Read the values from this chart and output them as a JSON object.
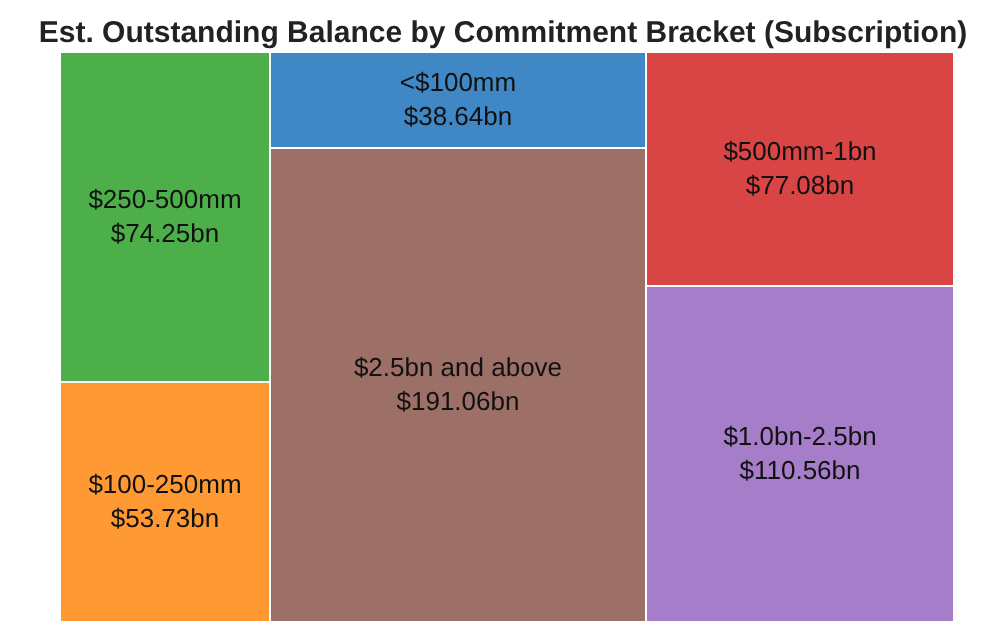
{
  "chart_data": {
    "type": "other",
    "title": "Est. Outstanding Balance by Commitment Bracket (Subscription)",
    "categories": [
      "$250-500mm",
      "$100-250mm",
      "<$100mm",
      "$2.5bn and above",
      "$500mm-1bn",
      "$1.0bn-2.5bn"
    ],
    "values": [
      74.25,
      53.73,
      38.64,
      191.06,
      77.08,
      110.56
    ],
    "value_labels": [
      "$74.25bn",
      "$53.73bn",
      "$38.64bn",
      "$191.06bn",
      "$77.08bn",
      "$110.56bn"
    ],
    "colors": [
      "#4daf4a",
      "#ff9933",
      "#3f88c5",
      "#9c6f67",
      "#d94545",
      "#a67dc8"
    ]
  }
}
